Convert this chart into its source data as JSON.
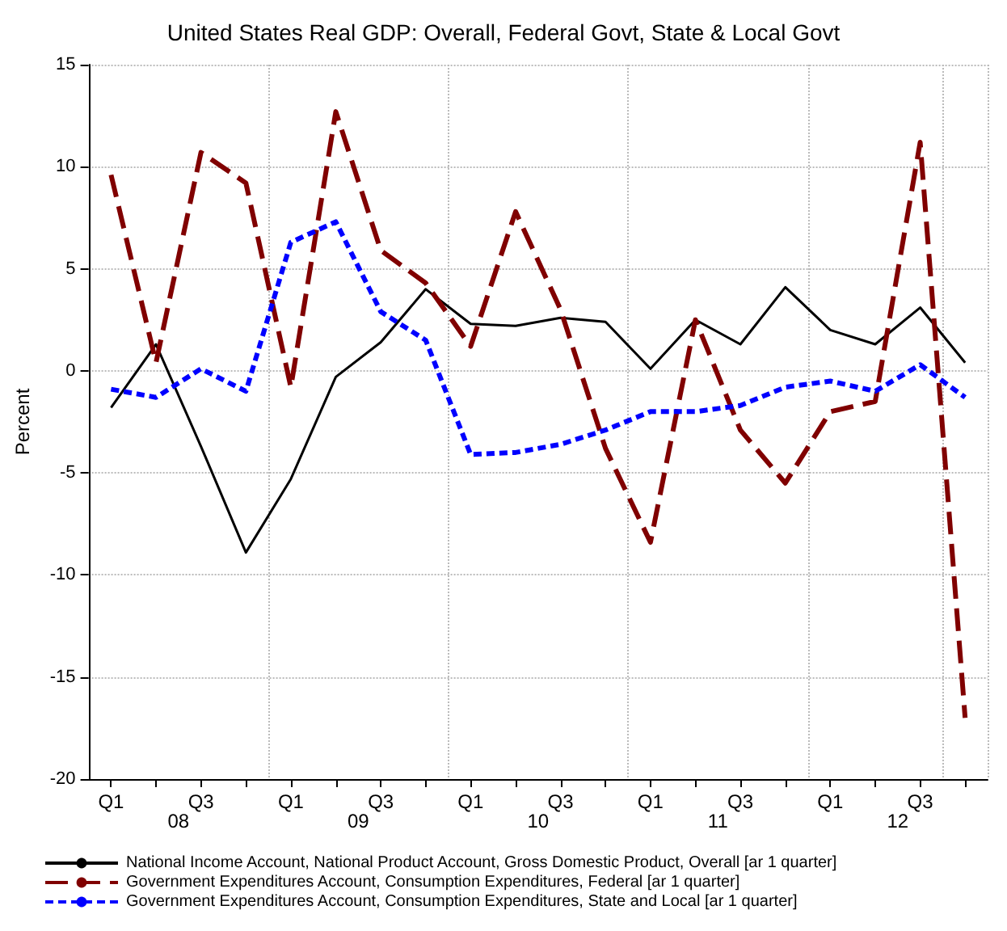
{
  "chart_data": {
    "type": "line",
    "title": "United States Real GDP: Overall, Federal Govt, State & Local Govt",
    "ylabel": "Percent",
    "categories": [
      "Q1",
      null,
      "Q3",
      null,
      "Q1",
      null,
      "Q3",
      null,
      "Q1",
      null,
      "Q3",
      null,
      "Q1",
      null,
      "Q3",
      null,
      "Q1",
      null,
      "Q3",
      null
    ],
    "annotations": [
      "08",
      "09",
      "10",
      "11",
      "12"
    ],
    "series": [
      {
        "name": "National Income Account, National Product Account, Gross Domestic Product, Overall [ar 1 quarter]",
        "color": "#000000",
        "line_style": "solid",
        "values": [
          -1.8,
          1.3,
          -3.7,
          -8.9,
          -5.3,
          -0.3,
          1.4,
          4.0,
          2.3,
          2.2,
          2.6,
          2.4,
          0.1,
          2.5,
          1.3,
          4.1,
          2.0,
          1.3,
          3.1,
          0.4
        ]
      },
      {
        "name": "Government Expenditures Account, Consumption Expenditures, Federal [ar 1 quarter]",
        "color": "#800000",
        "line_style": "dashed",
        "values": [
          9.6,
          0.4,
          10.7,
          9.2,
          -0.8,
          12.7,
          5.9,
          4.3,
          1.2,
          7.8,
          3.0,
          -3.8,
          -8.4,
          2.5,
          -2.9,
          -5.5,
          -2.0,
          -1.5,
          11.2,
          -17.0
        ]
      },
      {
        "name": "Government Expenditures Account, Consumption Expenditures, State and Local [ar 1 quarter]",
        "color": "#0000ff",
        "line_style": "dotted",
        "values": [
          -0.9,
          -1.3,
          0.1,
          -1.0,
          6.3,
          7.3,
          2.9,
          1.5,
          -4.1,
          -4.0,
          -3.6,
          -2.9,
          -2.0,
          -2.0,
          -1.7,
          -0.8,
          -0.5,
          -1.0,
          0.3,
          -1.3
        ]
      }
    ],
    "ylim": [
      -20,
      15
    ],
    "yticks": [
      -20,
      -15,
      -10,
      -5,
      0,
      5,
      10,
      15
    ],
    "grid": true,
    "legend": "bottom",
    "marker": "none"
  }
}
